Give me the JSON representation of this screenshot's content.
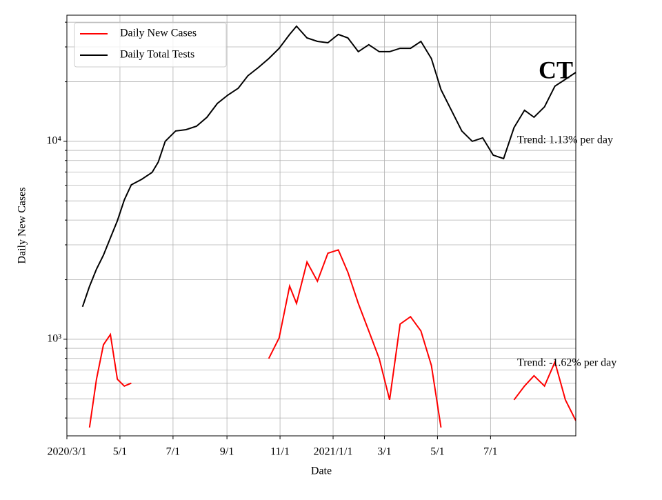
{
  "chart_data": {
    "type": "line",
    "title": "CT",
    "xlabel": "Date",
    "ylabel": "Daily New Cases",
    "x": [
      "2020-03-19",
      "2020-03-27",
      "2020-04-04",
      "2020-04-12",
      "2020-04-20",
      "2020-04-28",
      "2020-05-06",
      "2020-05-14",
      "2020-05-26",
      "2020-06-07",
      "2020-06-14",
      "2020-06-22",
      "2020-07-04",
      "2020-07-16",
      "2020-07-28",
      "2020-08-09",
      "2020-08-21",
      "2020-09-02",
      "2020-09-14",
      "2020-09-25",
      "2020-10-07",
      "2020-10-19",
      "2020-10-31",
      "2020-11-12",
      "2020-11-20",
      "2020-12-02",
      "2020-12-14",
      "2020-12-26",
      "2021-01-07",
      "2021-01-18",
      "2021-01-30",
      "2021-02-11",
      "2021-02-23",
      "2021-03-07",
      "2021-03-19",
      "2021-03-31",
      "2021-04-12",
      "2021-04-24",
      "2021-05-05",
      "2021-05-17",
      "2021-05-29",
      "2021-06-10",
      "2021-06-22",
      "2021-07-04",
      "2021-07-16",
      "2021-07-28",
      "2021-08-09",
      "2021-08-20",
      "2021-09-01",
      "2021-09-13",
      "2021-09-25",
      "2021-10-07"
    ],
    "series": [
      {
        "name": "Daily New Cases",
        "color": "#ff0000",
        "values": [
          null,
          358,
          628,
          938,
          1057,
          628,
          580,
          600,
          null,
          null,
          null,
          null,
          null,
          null,
          null,
          null,
          null,
          null,
          null,
          null,
          null,
          799,
          1016,
          1855,
          1517,
          2456,
          1965,
          2720,
          2830,
          2180,
          1517,
          1101,
          799,
          494,
          1193,
          1300,
          1101,
          737,
          358,
          null,
          null,
          null,
          null,
          null,
          null,
          494,
          580,
          654,
          580,
          767,
          494,
          388
        ]
      },
      {
        "name": "Daily Total Tests",
        "color": "#000000",
        "values": [
          1460,
          1850,
          2260,
          2660,
          3252,
          3970,
          5060,
          6030,
          6430,
          6970,
          7860,
          10000,
          11280,
          11460,
          11930,
          13240,
          15540,
          17120,
          18550,
          21430,
          23580,
          26180,
          29500,
          34700,
          38170,
          33300,
          31990,
          31480,
          34700,
          33300,
          28380,
          30780,
          28380,
          28380,
          29500,
          29500,
          31990,
          26180,
          18240,
          14350,
          11280,
          10000,
          10410,
          8520,
          8180,
          11740,
          14350,
          13240,
          14940,
          19010,
          20580,
          22290
        ]
      }
    ],
    "annotations": [
      "Trend: 1.13% per day",
      "Trend: -1.62% per day"
    ],
    "xlim": [
      "2020-03-01",
      "2021-10-07"
    ],
    "xticks": [
      {
        "value": "2020-03-01",
        "label": "2020/3/1"
      },
      {
        "value": "2020-05-01",
        "label": "5/1"
      },
      {
        "value": "2020-07-01",
        "label": "7/1"
      },
      {
        "value": "2020-09-01",
        "label": "9/1"
      },
      {
        "value": "2020-11-01",
        "label": "11/1"
      },
      {
        "value": "2021-01-01",
        "label": "2021/1/1"
      },
      {
        "value": "2021-03-01",
        "label": "3/1"
      },
      {
        "value": "2021-05-01",
        "label": "5/1"
      },
      {
        "value": "2021-07-01",
        "label": "7/1"
      }
    ],
    "ylim": [
      325,
      43400
    ],
    "log_y": true,
    "yticks": [
      {
        "value": 1000,
        "label": "10³"
      },
      {
        "value": 10000,
        "label": "10⁴"
      }
    ],
    "yminor": [
      400,
      500,
      600,
      700,
      800,
      900,
      2000,
      3000,
      4000,
      5000,
      6000,
      7000,
      8000,
      9000,
      20000,
      30000,
      40000
    ],
    "grid": true,
    "legend": "upper left"
  }
}
